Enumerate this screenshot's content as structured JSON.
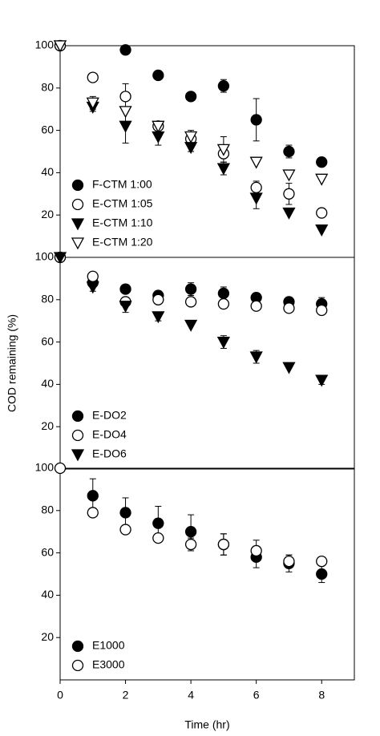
{
  "chart_data": [
    {
      "type": "scatter",
      "legend": "lower left",
      "x": [
        0,
        1,
        2,
        3,
        4,
        5,
        6,
        7,
        8
      ],
      "xlim": [
        0,
        9
      ],
      "ylim": [
        0,
        100
      ],
      "yticks": [
        20,
        40,
        60,
        80,
        100
      ],
      "series": [
        {
          "name": "F-CTM 1:00",
          "marker": "circle",
          "filled": true,
          "color": "#000000",
          "values": [
            100,
            null,
            98,
            86,
            76,
            81,
            65,
            50,
            45
          ],
          "errors": [
            null,
            null,
            null,
            null,
            2,
            3,
            10,
            3,
            2
          ]
        },
        {
          "name": "E-CTM 1:05",
          "marker": "circle",
          "filled": false,
          "color": "#000000",
          "values": [
            100,
            85,
            76,
            62,
            56,
            49,
            33,
            30,
            21
          ],
          "errors": [
            null,
            null,
            6,
            null,
            null,
            null,
            3,
            5,
            null
          ]
        },
        {
          "name": "E-CTM 1:10",
          "marker": "triangle-down",
          "filled": true,
          "color": "#000000",
          "values": [
            100,
            71,
            62,
            57,
            52,
            42,
            28,
            21,
            13
          ],
          "errors": [
            null,
            2,
            8,
            4,
            2,
            3,
            5,
            null,
            null
          ]
        },
        {
          "name": "E-CTM 1:20",
          "marker": "triangle-down",
          "filled": false,
          "color": "#000000",
          "values": [
            100,
            73,
            69,
            62,
            57,
            51,
            45,
            39,
            37
          ],
          "errors": [
            null,
            3,
            null,
            2,
            3,
            6,
            null,
            null,
            null
          ]
        }
      ]
    },
    {
      "type": "scatter",
      "legend": "lower left",
      "ylabel": "COD remaining (%)",
      "x": [
        0,
        1,
        2,
        3,
        4,
        5,
        6,
        7,
        8
      ],
      "xlim": [
        0,
        9
      ],
      "ylim": [
        0,
        100
      ],
      "yticks": [
        20,
        40,
        60,
        80,
        100
      ],
      "series": [
        {
          "name": "E-DO2",
          "marker": "circle",
          "filled": true,
          "color": "#000000",
          "values": [
            100,
            88,
            85,
            82,
            85,
            83,
            81,
            79,
            78
          ],
          "errors": [
            null,
            2,
            2,
            2,
            3,
            3,
            2,
            2,
            3
          ]
        },
        {
          "name": "E-DO4",
          "marker": "circle",
          "filled": false,
          "color": "#000000",
          "values": [
            100,
            91,
            79,
            80,
            79,
            78,
            77,
            76,
            75
          ],
          "errors": [
            null,
            null,
            2,
            2,
            null,
            null,
            null,
            2,
            2
          ]
        },
        {
          "name": "E-DO6",
          "marker": "triangle-down",
          "filled": true,
          "color": "#000000",
          "values": [
            100,
            86,
            77,
            72,
            68,
            60,
            53,
            48,
            42
          ],
          "errors": [
            null,
            2,
            3,
            2,
            null,
            3,
            3,
            null,
            2
          ]
        }
      ]
    },
    {
      "type": "scatter",
      "legend": "lower left",
      "xlabel": "Time (hr)",
      "x": [
        0,
        1,
        2,
        3,
        4,
        5,
        6,
        7,
        8
      ],
      "xlim": [
        0,
        9
      ],
      "xticks": [
        0,
        2,
        4,
        6,
        8
      ],
      "ylim": [
        0,
        100
      ],
      "yticks": [
        20,
        40,
        60,
        80,
        100
      ],
      "series": [
        {
          "name": "E1000",
          "marker": "circle",
          "filled": true,
          "color": "#000000",
          "values": [
            null,
            87,
            79,
            74,
            70,
            64,
            58,
            55,
            50
          ],
          "errors": [
            null,
            8,
            7,
            8,
            8,
            5,
            5,
            4,
            4
          ]
        },
        {
          "name": "E3000",
          "marker": "circle",
          "filled": false,
          "color": "#000000",
          "values": [
            100,
            79,
            71,
            67,
            64,
            64,
            61,
            56,
            56
          ],
          "errors": [
            null,
            null,
            null,
            null,
            3,
            5,
            5,
            3,
            null
          ]
        }
      ]
    }
  ]
}
